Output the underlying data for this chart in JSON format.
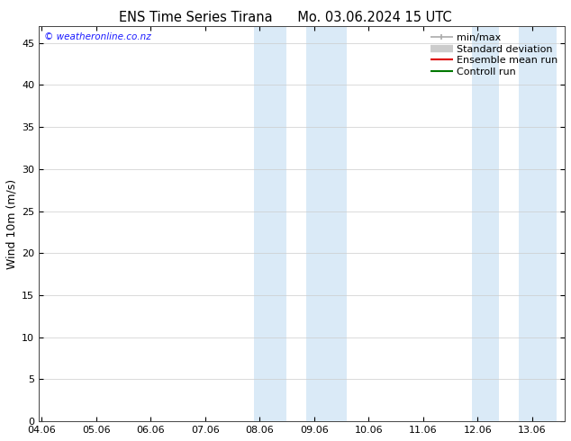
{
  "title_left": "ENS Time Series Tirana",
  "title_right": "Mo. 03.06.2024 15 UTC",
  "ylabel": "Wind 10m (m/s)",
  "background_color": "#ffffff",
  "plot_bg_color": "#ffffff",
  "x_tick_labels": [
    "04.06",
    "05.06",
    "06.06",
    "07.06",
    "08.06",
    "09.06",
    "10.06",
    "11.06",
    "12.06",
    "13.06"
  ],
  "x_tick_positions": [
    0,
    1,
    2,
    3,
    4,
    5,
    6,
    7,
    8,
    9
  ],
  "xlim": [
    -0.05,
    9.6
  ],
  "ylim": [
    0,
    47
  ],
  "yticks": [
    0,
    5,
    10,
    15,
    20,
    25,
    30,
    35,
    40,
    45
  ],
  "band_regions": [
    [
      3.9,
      4.5
    ],
    [
      4.85,
      5.6
    ],
    [
      7.9,
      8.4
    ],
    [
      8.75,
      9.45
    ]
  ],
  "band_color": "#daeaf7",
  "legend_entries": [
    {
      "label": "min/max",
      "color": "#aaaaaa",
      "lw": 1.2,
      "style": "minmax"
    },
    {
      "label": "Standard deviation",
      "color": "#cccccc",
      "lw": 6,
      "style": "line"
    },
    {
      "label": "Ensemble mean run",
      "color": "#dd0000",
      "lw": 1.5,
      "style": "line"
    },
    {
      "label": "Controll run",
      "color": "#007700",
      "lw": 1.5,
      "style": "line"
    }
  ],
  "watermark_text": "© weatheronline.co.nz",
  "watermark_color": "#1a1aff",
  "title_fontsize": 10.5,
  "axis_label_fontsize": 9,
  "tick_fontsize": 8,
  "legend_fontsize": 8
}
